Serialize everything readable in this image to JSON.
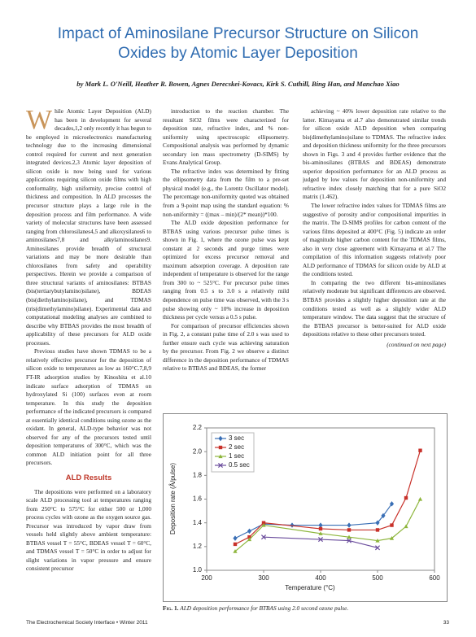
{
  "header": {
    "title": "Impact of Aminosilane Precursor Structure on Silicon Oxides by Atomic Layer Deposition",
    "authors": "by Mark L. O'Neill, Heather R. Bowen, Agnes Derecskei-Kovacs, Kirk S. Cuthill, Bing Han, and Manchao Xiao"
  },
  "column_1": {
    "paragraphs": [
      "While Atomic Layer Deposition (ALD) has been in development for several decades,1,2 only recently it has begun to be employed in microelectronics manufacturing technology due to the increasing dimensional control required for current and next generation integrated devices.2,3 Atomic layer deposition of silicon oxide is now being used for various applications requiring silicon oxide films with high conformality, high uniformity, precise control of thickness and composition. In ALD processes the precursor structure plays a large role in the deposition process and film performance. A wide variety of molecular structures have been assessed ranging from chlorosilanes4,5 and alkoxysilanes6 to aminosilanes7,8 and alkylaminosilanes9. Aminosilanes provide breadth of structural variations and may be more desirable than chlorosilanes from safety and operability perspectives. Herein we provide a comparison of three structural variants of aminosilanes: BTBAS (bis(tertiarybutylamino)silane), BDEAS (bis(diethylamino)silane), and TDMAS (tris(dimethylamino)silane). Experimental data and computational modeling analyses are combined to describe why BTBAS provides the most breadth of applicability of these precursors for ALD oxide processes.",
      "Previous studies have shown TDMAS to be a relatively effective precursor for the deposition of silicon oxide to temperatures as low as 160°C.7,8,9 FT-IR adsorption studies by Kinoshita et al.10 indicate surface adsorption of TDMAS on hydroxylated Si (100) surfaces even at room temperature. In this study the deposition performance of the indicated precursors is compared at essentially identical conditions using ozone as the oxidant. In general, ALD-type behavior was not observed for any of the precursors tested until deposition temperatures of 300°C, which was the common ALD initiation point for all three precursors."
    ],
    "heading": "ALD Results",
    "paragraphs_after": [
      "The depositions were performed on a laboratory scale ALD processing tool at temperatures ranging from 250°C to 575°C for either 500 or 1,000 process cycles with ozone as the oxygen source gas. Precursor was introduced by vapor draw from vessels held slightly above ambient temperature: BTBAS vessel T = 55°C, BDEAS vessel T = 60°C, and TDMAS vessel T = 50°C in order to adjust for slight variations in vapor pressure and ensure consistent precursor"
    ]
  },
  "column_2": {
    "paragraphs": [
      "introduction to the reaction chamber. The resultant SiO2 films were characterized for deposition rate, refractive index, and % non-uniformity using spectroscopic ellipsometry. Compositional analysis was performed by dynamic secondary ion mass spectrometry (D-SIMS) by Evans Analytical Group.",
      "The refractive index was determined by fitting the ellipsometry data from the film to a pre-set physical model (e.g., the Lorentz Oscillator model). The percentage non-uniformity quoted was obtained from a 9-point map using the standard equation: % non-uniformity = ((max – min)/(2* mean))*100.",
      "The ALD oxide deposition performance for BTBAS using various precursor pulse times is shown in Fig. 1, where the ozone pulse was kept constant at 2 seconds and purge times were optimized for excess precursor removal and maximum adsorption coverage. A deposition rate independent of temperature is observed for the range from 300 to ~ 525°C. For precursor pulse times ranging from 0.5 s to 3.0 s a relatively mild dependence on pulse time was observed, with the 3 s pulse showing only ~ 10% increase in deposition thickness per cycle versus a 0.5 s pulse.",
      "For comparison of precursor efficiencies shown in Fig. 2, a constant pulse time of 2.0 s was used to further ensure each cycle was achieving saturation by the precursor. From Fig. 2 we observe a distinct difference in the deposition performance of TDMAS relative to BTBAS and BDEAS, the former"
    ]
  },
  "column_3": {
    "paragraphs": [
      "achieving ~ 40% lower deposition rate relative to the latter. Kimayama et al.7 also demonstrated similar trends for silicon oxide ALD deposition when comparing bis(dimethylamino)silane to TDMAS. The refractive index and deposition thickness uniformity for the three precursors shown in Figs. 3 and 4 provides further evidence that the bis-aminosilanes (BTBAS and BDEAS) demonstrate superior deposition performance for an ALD process as judged by low values for deposition non-uniformity and refractive index closely matching that for a pure SiO2 matrix (1.462).",
      "The lower refractive index values for TDMAS films are suggestive of porosity and/or compositional impurities in the matrix. The D-SIMS profiles for carbon content of the various films deposited at 400°C (Fig. 5) indicate an order of magnitude higher carbon content for the TDMAS films, also in very close agreement with Kimayama et al.7 The compilation of this information suggests relatively poor ALD performance of TDMAS for silicon oxide by ALD at the conditions tested.",
      "In comparing the two different bis-aminosilanes relatively moderate but significant differences are observed. BTBAS provides a slightly higher deposition rate at the conditions tested as well as a slightly wider ALD temperature window. The data suggest that the structure of the BTBAS precursor is better-suited for ALD oxide depositions relative to these other precursors tested."
    ],
    "continued": "(continued on next page)"
  },
  "chart_data": {
    "type": "line",
    "x_label": "Temperature (°C)",
    "y_label": "Deposition rate (Å/pulse)",
    "xlim": [
      200,
      600
    ],
    "xticks": [
      200,
      300,
      400,
      500,
      600
    ],
    "ylim": [
      1.0,
      2.2
    ],
    "yticks": [
      {
        "value": 1.0,
        "label": "1.0"
      },
      1.2,
      1.4,
      1.6,
      1.8,
      {
        "value": 2.0,
        "label": "2.0"
      },
      2.2
    ],
    "grid": false,
    "legend": "upper left",
    "series": [
      {
        "name": "3 sec",
        "color": "#3a6fb5",
        "marker": "diamond",
        "x": [
          250,
          275,
          300,
          350,
          400,
          450,
          500,
          510,
          525
        ],
        "values": [
          1.27,
          1.33,
          1.39,
          1.38,
          1.38,
          1.38,
          1.4,
          1.46,
          1.56
        ]
      },
      {
        "name": "2 sec",
        "color": "#c8312a",
        "marker": "square",
        "x": [
          250,
          275,
          300,
          400,
          450,
          500,
          525,
          550,
          575
        ],
        "values": [
          1.22,
          1.28,
          1.4,
          1.35,
          1.34,
          1.34,
          1.38,
          1.61,
          2.01
        ]
      },
      {
        "name": "1 sec",
        "color": "#8db53b",
        "marker": "triangle",
        "x": [
          250,
          275,
          300,
          400,
          450,
          500,
          525,
          550,
          575
        ],
        "values": [
          1.16,
          1.26,
          1.38,
          1.31,
          1.28,
          1.25,
          1.27,
          1.37,
          1.6
        ]
      },
      {
        "name": "0.5 sec",
        "color": "#6a4c9c",
        "marker": "cross",
        "x": [
          300,
          400,
          450,
          500
        ],
        "values": [
          1.28,
          1.26,
          1.25,
          1.19
        ]
      }
    ]
  },
  "caption": {
    "label": "Fig. 1.",
    "text": "ALD deposition performance for BTBAS using 2.0 second ozone pulse."
  },
  "footer": {
    "journal": "The Electrochemical Society Interface • Winter 2011",
    "page": "33"
  }
}
